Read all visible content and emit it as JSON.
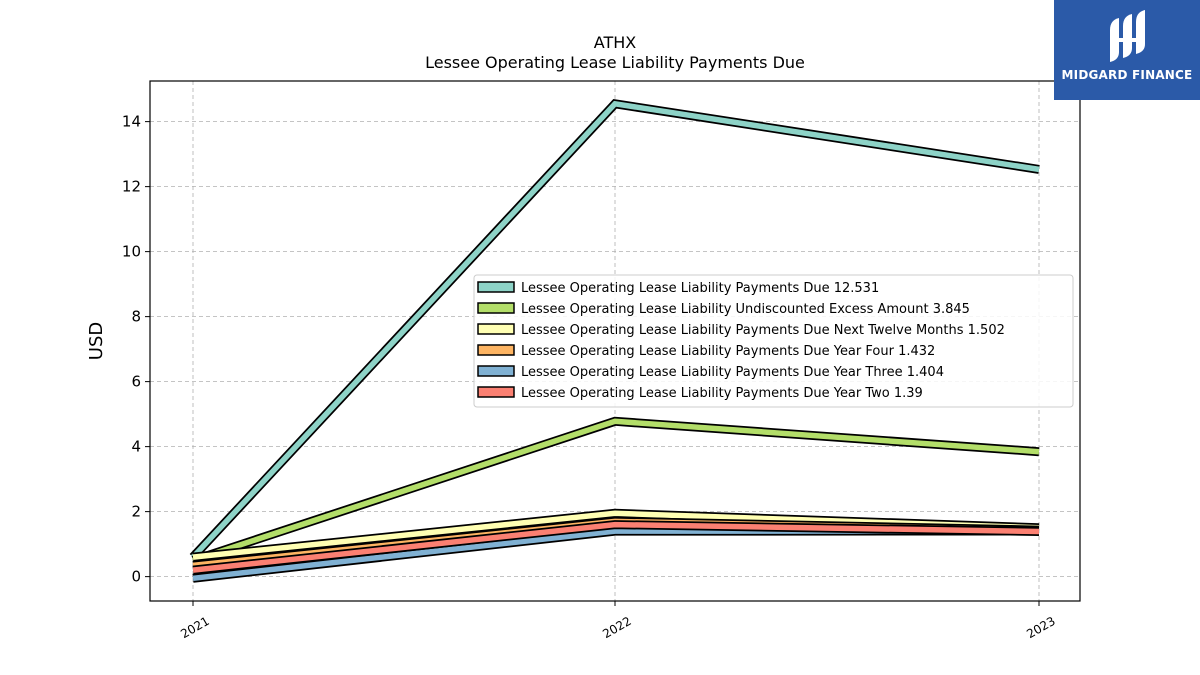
{
  "chart_data": {
    "type": "line",
    "title": "ATHX",
    "subtitle": "Lessee Operating Lease Liability Payments Due",
    "ylabel": "USD",
    "xlabel": "",
    "categories": [
      "2021",
      "2022",
      "2023"
    ],
    "ylim": [
      -0.75,
      15.25
    ],
    "yticks": [
      0,
      2,
      4,
      6,
      8,
      10,
      12,
      14
    ],
    "grid": true,
    "legend_position": "center-right",
    "series": [
      {
        "name": "Lessee Operating Lease Liability Payments Due",
        "legend_label": "Lessee Operating Lease Liability Payments Due  12.531",
        "color": "#8dd3c7",
        "values": [
          0.6,
          14.55,
          12.531
        ]
      },
      {
        "name": "Lessee Operating Lease Liability Undiscounted Excess Amount",
        "legend_label": "Lessee Operating Lease Liability Undiscounted Excess Amount  3.845",
        "color": "#b3de69",
        "values": [
          0.5,
          4.78,
          3.845
        ]
      },
      {
        "name": "Lessee Operating Lease Liability Payments Due Next Twelve Months",
        "legend_label": "Lessee Operating Lease Liability Payments Due Next Twelve Months  1.502",
        "color": "#ffffb3",
        "values": [
          0.6,
          1.95,
          1.502
        ]
      },
      {
        "name": "Lessee Operating Lease Liability Payments Due Year Four",
        "legend_label": "Lessee Operating Lease Liability Payments Due Year Four  1.432",
        "color": "#fdb462",
        "values": [
          0.35,
          1.7,
          1.432
        ]
      },
      {
        "name": "Lessee Operating Lease Liability Payments Due Year Three",
        "legend_label": "Lessee Operating Lease Liability Payments Due Year Three  1.404",
        "color": "#80b1d3",
        "values": [
          -0.05,
          1.4,
          1.404
        ]
      },
      {
        "name": "Lessee Operating Lease Liability Payments Due Year Two",
        "legend_label": "Lessee Operating Lease Liability Payments Due Year Two  1.39",
        "color": "#fb8072",
        "values": [
          0.2,
          1.6,
          1.39
        ]
      }
    ]
  },
  "logo": {
    "text": "MIDGARD FINANCE",
    "background": "#2b5aa8"
  }
}
